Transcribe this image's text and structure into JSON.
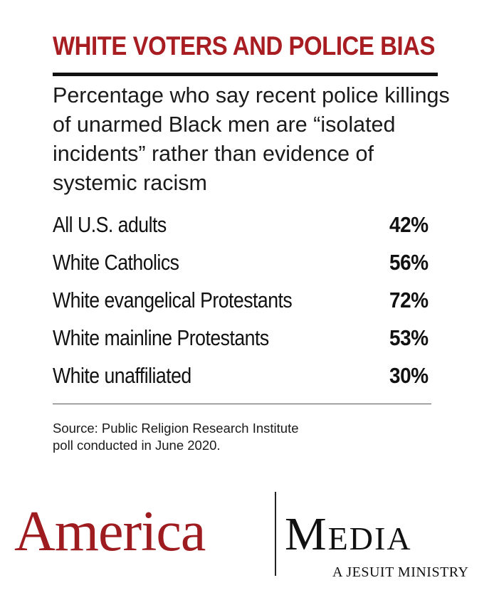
{
  "chart_data": {
    "type": "table",
    "title": "WHITE VOTERS AND POLICE BIAS",
    "subtitle_lines": [
      "Percentage who say recent police killings",
      "of unarmed Black men are “isolated",
      "incidents” rather than evidence of",
      "systemic racism"
    ],
    "categories": [
      "All U.S. adults",
      "White Catholics",
      "White evangelical Protestants",
      "White mainline Protestants",
      "White unaffiliated"
    ],
    "values": [
      42,
      56,
      72,
      53,
      30
    ],
    "value_labels": [
      "42%",
      "56%",
      "72%",
      "53%",
      "30%"
    ],
    "source_lines": [
      "Source: Public Religion Research Institute",
      "poll conducted in June 2020."
    ]
  },
  "branding": {
    "left": "America",
    "right": "Media",
    "tagline": "A JESUIT MINISTRY"
  },
  "colors": {
    "accent": "#a71d22",
    "text": "#111111"
  }
}
